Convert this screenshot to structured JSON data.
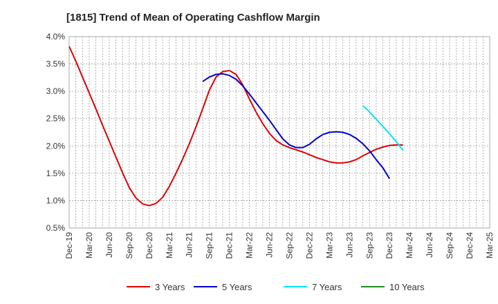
{
  "chart_data": {
    "type": "line",
    "title": "[1815]  Trend of Mean of Operating Cashflow Margin",
    "xlabel": "",
    "ylabel": "",
    "ylim": [
      0.5,
      4.0
    ],
    "y_ticks": [
      "0.5%",
      "1.0%",
      "1.5%",
      "2.0%",
      "2.5%",
      "3.0%",
      "3.5%",
      "4.0%"
    ],
    "y_tick_values": [
      0.5,
      1.0,
      1.5,
      2.0,
      2.5,
      3.0,
      3.5,
      4.0
    ],
    "x_ticks": [
      "Dec-19",
      "Mar-20",
      "Jun-20",
      "Sep-20",
      "Dec-20",
      "Mar-21",
      "Jun-21",
      "Sep-21",
      "Dec-21",
      "Mar-22",
      "Jun-22",
      "Sep-22",
      "Dec-22",
      "Mar-23",
      "Jun-23",
      "Sep-23",
      "Dec-23",
      "Mar-24",
      "Jun-24",
      "Sep-24",
      "Dec-24",
      "Mar-25"
    ],
    "x_unit": "months since Dec-19",
    "xlim": [
      0,
      63
    ],
    "grid": true,
    "legend_position": "bottom",
    "series": [
      {
        "name": "3 Years",
        "color": "#dd0000",
        "points": [
          [
            0,
            3.82
          ],
          [
            1,
            3.55
          ],
          [
            2,
            3.26
          ],
          [
            3,
            2.97
          ],
          [
            4,
            2.68
          ],
          [
            5,
            2.38
          ],
          [
            6,
            2.09
          ],
          [
            7,
            1.8
          ],
          [
            8,
            1.51
          ],
          [
            9,
            1.24
          ],
          [
            10,
            1.05
          ],
          [
            11,
            0.94
          ],
          [
            12,
            0.91
          ],
          [
            13,
            0.95
          ],
          [
            14,
            1.06
          ],
          [
            15,
            1.26
          ],
          [
            16,
            1.5
          ],
          [
            17,
            1.76
          ],
          [
            18,
            2.04
          ],
          [
            19,
            2.35
          ],
          [
            20,
            2.68
          ],
          [
            21,
            3.02
          ],
          [
            22,
            3.26
          ],
          [
            23,
            3.36
          ],
          [
            24,
            3.38
          ],
          [
            25,
            3.31
          ],
          [
            26,
            3.12
          ],
          [
            27,
            2.86
          ],
          [
            28,
            2.62
          ],
          [
            29,
            2.41
          ],
          [
            30,
            2.23
          ],
          [
            31,
            2.1
          ],
          [
            32,
            2.02
          ],
          [
            33,
            1.97
          ],
          [
            34,
            1.93
          ],
          [
            35,
            1.89
          ],
          [
            36,
            1.84
          ],
          [
            37,
            1.79
          ],
          [
            38,
            1.75
          ],
          [
            39,
            1.71
          ],
          [
            40,
            1.69
          ],
          [
            41,
            1.69
          ],
          [
            42,
            1.71
          ],
          [
            43,
            1.75
          ],
          [
            44,
            1.82
          ],
          [
            45,
            1.88
          ],
          [
            46,
            1.94
          ],
          [
            47,
            1.98
          ],
          [
            48,
            2.01
          ],
          [
            49,
            2.02
          ],
          [
            50,
            2.02
          ]
        ]
      },
      {
        "name": "5 Years",
        "color": "#0000cc",
        "points": [
          [
            20,
            3.18
          ],
          [
            21,
            3.26
          ],
          [
            22,
            3.31
          ],
          [
            23,
            3.32
          ],
          [
            24,
            3.29
          ],
          [
            25,
            3.22
          ],
          [
            26,
            3.1
          ],
          [
            27,
            2.95
          ],
          [
            28,
            2.79
          ],
          [
            29,
            2.63
          ],
          [
            30,
            2.47
          ],
          [
            31,
            2.3
          ],
          [
            32,
            2.13
          ],
          [
            33,
            2.02
          ],
          [
            34,
            1.97
          ],
          [
            35,
            1.97
          ],
          [
            36,
            2.03
          ],
          [
            37,
            2.13
          ],
          [
            38,
            2.21
          ],
          [
            39,
            2.25
          ],
          [
            40,
            2.26
          ],
          [
            41,
            2.25
          ],
          [
            42,
            2.21
          ],
          [
            43,
            2.14
          ],
          [
            44,
            2.04
          ],
          [
            45,
            1.91
          ],
          [
            46,
            1.75
          ],
          [
            47,
            1.6
          ],
          [
            48,
            1.4
          ]
        ]
      },
      {
        "name": "7 Years",
        "color": "#00e5ee",
        "points": [
          [
            44,
            2.74
          ],
          [
            45,
            2.62
          ],
          [
            46,
            2.49
          ],
          [
            47,
            2.36
          ],
          [
            48,
            2.22
          ],
          [
            49,
            2.08
          ],
          [
            50,
            1.92
          ]
        ]
      },
      {
        "name": "10 Years",
        "color": "#228b22",
        "points": []
      }
    ]
  }
}
